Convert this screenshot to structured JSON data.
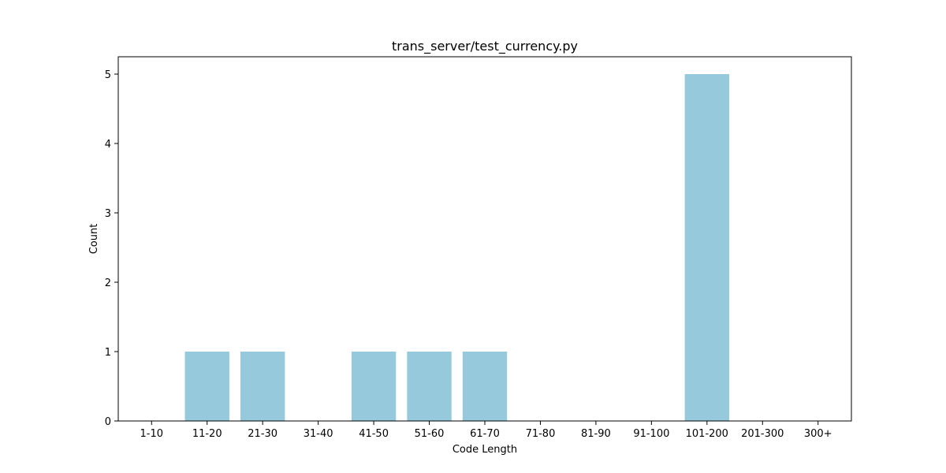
{
  "chart_data": {
    "type": "bar",
    "title": "trans_server/test_currency.py",
    "xlabel": "Code Length",
    "ylabel": "Count",
    "categories": [
      "1-10",
      "11-20",
      "21-30",
      "31-40",
      "41-50",
      "51-60",
      "61-70",
      "71-80",
      "81-90",
      "91-100",
      "101-200",
      "201-300",
      "300+"
    ],
    "values": [
      0,
      1,
      1,
      0,
      1,
      1,
      1,
      0,
      0,
      0,
      5,
      0,
      0
    ],
    "ylim": [
      0,
      5.25
    ],
    "yticks": [
      0,
      1,
      2,
      3,
      4,
      5
    ],
    "grid": false,
    "legend": "none",
    "bar_color": "#96c9dc"
  }
}
